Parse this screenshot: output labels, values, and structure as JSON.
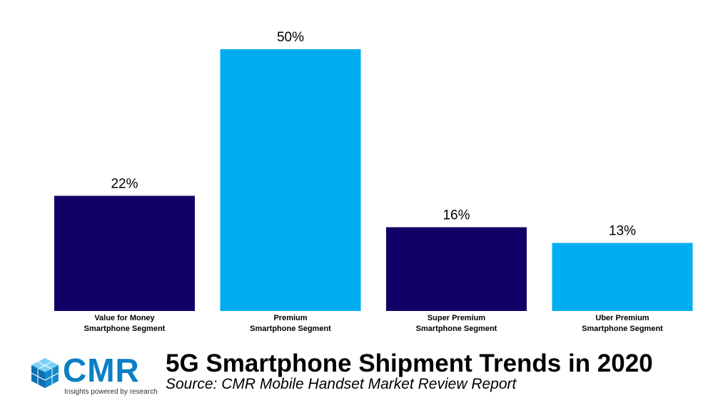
{
  "chart_data": {
    "type": "bar",
    "categories": [
      [
        "Value for Money",
        "Smartphone Segment"
      ],
      [
        "Premium",
        "Smartphone Segment"
      ],
      [
        "Super Premium",
        "Smartphone Segment"
      ],
      [
        "Uber Premium",
        "Smartphone Segment"
      ]
    ],
    "values": [
      22,
      50,
      16,
      13
    ],
    "data_labels": [
      "22%",
      "50%",
      "16%",
      "13%"
    ],
    "colors": [
      "#130066",
      "#00aeef",
      "#130066",
      "#00aeef"
    ],
    "ylim": [
      0,
      50
    ],
    "grid": false,
    "legend": "none"
  },
  "footer": {
    "title": "5G Smartphone Shipment Trends in 2020",
    "subtitle": "Source: CMR Mobile Handset Market Review Report",
    "logo_text": "CMR",
    "logo_tagline": "Insights powered by research",
    "logo_icon": "cube-cluster-icon",
    "logo_color": "#0a7fc4"
  }
}
